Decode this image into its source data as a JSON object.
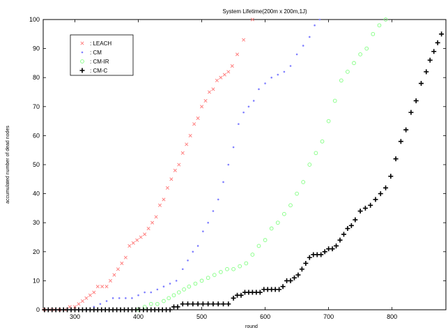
{
  "chart_data": {
    "type": "scatter",
    "title": "System Lifetime(200m x 200m,1J)",
    "xlabel": "round",
    "ylabel": "accumulated number of dead nodes",
    "xlim": [
      250,
      885
    ],
    "ylim": [
      0,
      100
    ],
    "xticks": [
      300,
      400,
      500,
      600,
      700,
      800
    ],
    "yticks": [
      0,
      10,
      20,
      30,
      40,
      50,
      60,
      70,
      80,
      90,
      100
    ],
    "grid": false,
    "legend_position": "top-left",
    "series": [
      {
        "name": ": LEACH",
        "marker": "x",
        "color": "#ff8080",
        "points": [
          [
            252,
            0
          ],
          [
            260,
            0
          ],
          [
            268,
            0
          ],
          [
            276,
            0
          ],
          [
            284,
            0
          ],
          [
            292,
            1
          ],
          [
            300,
            1
          ],
          [
            306,
            2
          ],
          [
            312,
            3
          ],
          [
            318,
            4
          ],
          [
            324,
            5
          ],
          [
            330,
            6
          ],
          [
            336,
            8
          ],
          [
            343,
            8
          ],
          [
            350,
            8
          ],
          [
            356,
            10
          ],
          [
            362,
            12
          ],
          [
            368,
            14
          ],
          [
            374,
            16
          ],
          [
            380,
            18
          ],
          [
            386,
            22
          ],
          [
            392,
            23
          ],
          [
            398,
            24
          ],
          [
            404,
            25
          ],
          [
            410,
            26
          ],
          [
            416,
            28
          ],
          [
            422,
            30
          ],
          [
            428,
            32
          ],
          [
            434,
            36
          ],
          [
            440,
            38
          ],
          [
            446,
            42
          ],
          [
            452,
            45
          ],
          [
            458,
            48
          ],
          [
            464,
            50
          ],
          [
            470,
            54
          ],
          [
            476,
            57
          ],
          [
            482,
            60
          ],
          [
            488,
            64
          ],
          [
            494,
            66
          ],
          [
            500,
            70
          ],
          [
            506,
            72
          ],
          [
            512,
            75
          ],
          [
            518,
            76
          ],
          [
            524,
            79
          ],
          [
            530,
            80
          ],
          [
            536,
            81
          ],
          [
            542,
            82
          ],
          [
            548,
            84
          ],
          [
            556,
            88
          ],
          [
            566,
            93
          ],
          [
            580,
            100
          ]
        ]
      },
      {
        "name": ": CM",
        "marker": "dot",
        "color": "#8080ff",
        "points": [
          [
            258,
            0
          ],
          [
            270,
            0
          ],
          [
            282,
            0
          ],
          [
            294,
            0
          ],
          [
            306,
            0
          ],
          [
            318,
            0
          ],
          [
            330,
            1
          ],
          [
            340,
            2
          ],
          [
            350,
            3
          ],
          [
            360,
            4
          ],
          [
            370,
            4
          ],
          [
            380,
            4
          ],
          [
            390,
            4
          ],
          [
            400,
            5
          ],
          [
            410,
            6
          ],
          [
            420,
            6
          ],
          [
            430,
            7
          ],
          [
            440,
            8
          ],
          [
            450,
            9
          ],
          [
            460,
            10
          ],
          [
            470,
            14
          ],
          [
            478,
            17
          ],
          [
            486,
            20
          ],
          [
            494,
            22
          ],
          [
            502,
            27
          ],
          [
            510,
            30
          ],
          [
            518,
            34
          ],
          [
            526,
            38
          ],
          [
            534,
            44
          ],
          [
            542,
            50
          ],
          [
            550,
            56
          ],
          [
            558,
            64
          ],
          [
            566,
            68
          ],
          [
            574,
            70
          ],
          [
            582,
            72
          ],
          [
            590,
            76
          ],
          [
            600,
            78
          ],
          [
            610,
            80
          ],
          [
            620,
            81
          ],
          [
            630,
            82
          ],
          [
            640,
            84
          ],
          [
            650,
            88
          ],
          [
            660,
            91
          ],
          [
            670,
            94
          ],
          [
            678,
            98
          ],
          [
            686,
            100
          ]
        ]
      },
      {
        "name": ": CM-IR",
        "marker": "circle",
        "color": "#80ff80",
        "points": [
          [
            400,
            0
          ],
          [
            410,
            1
          ],
          [
            420,
            2
          ],
          [
            430,
            2
          ],
          [
            440,
            3
          ],
          [
            448,
            4
          ],
          [
            456,
            5
          ],
          [
            464,
            6
          ],
          [
            472,
            7
          ],
          [
            480,
            8
          ],
          [
            490,
            9
          ],
          [
            500,
            10
          ],
          [
            510,
            11
          ],
          [
            520,
            12
          ],
          [
            530,
            13
          ],
          [
            540,
            14
          ],
          [
            550,
            14
          ],
          [
            560,
            15
          ],
          [
            570,
            16
          ],
          [
            580,
            19
          ],
          [
            590,
            22
          ],
          [
            600,
            24
          ],
          [
            610,
            28
          ],
          [
            620,
            30
          ],
          [
            630,
            33
          ],
          [
            640,
            36
          ],
          [
            650,
            40
          ],
          [
            660,
            44
          ],
          [
            670,
            50
          ],
          [
            680,
            54
          ],
          [
            690,
            58
          ],
          [
            700,
            65
          ],
          [
            710,
            72
          ],
          [
            720,
            79
          ],
          [
            730,
            82
          ],
          [
            740,
            85
          ],
          [
            750,
            88
          ],
          [
            760,
            90
          ],
          [
            770,
            95
          ],
          [
            780,
            98
          ],
          [
            790,
            100
          ]
        ]
      },
      {
        "name": ": CM-C",
        "marker": "plus",
        "color": "#000000",
        "points": [
          [
            252,
            0
          ],
          [
            258,
            0
          ],
          [
            264,
            0
          ],
          [
            270,
            0
          ],
          [
            276,
            0
          ],
          [
            282,
            0
          ],
          [
            288,
            0
          ],
          [
            294,
            0
          ],
          [
            300,
            0
          ],
          [
            306,
            0
          ],
          [
            312,
            0
          ],
          [
            318,
            0
          ],
          [
            324,
            0
          ],
          [
            330,
            0
          ],
          [
            336,
            0
          ],
          [
            342,
            0
          ],
          [
            348,
            0
          ],
          [
            354,
            0
          ],
          [
            360,
            0
          ],
          [
            366,
            0
          ],
          [
            372,
            0
          ],
          [
            378,
            0
          ],
          [
            384,
            0
          ],
          [
            390,
            0
          ],
          [
            396,
            0
          ],
          [
            402,
            0
          ],
          [
            408,
            0
          ],
          [
            414,
            0
          ],
          [
            420,
            0
          ],
          [
            426,
            0
          ],
          [
            432,
            0
          ],
          [
            438,
            0
          ],
          [
            444,
            0
          ],
          [
            450,
            0
          ],
          [
            456,
            1
          ],
          [
            462,
            1
          ],
          [
            470,
            2
          ],
          [
            478,
            2
          ],
          [
            486,
            2
          ],
          [
            494,
            2
          ],
          [
            502,
            2
          ],
          [
            510,
            2
          ],
          [
            518,
            2
          ],
          [
            526,
            2
          ],
          [
            534,
            2
          ],
          [
            542,
            2
          ],
          [
            550,
            4
          ],
          [
            556,
            5
          ],
          [
            562,
            5
          ],
          [
            568,
            6
          ],
          [
            574,
            6
          ],
          [
            580,
            6
          ],
          [
            586,
            6
          ],
          [
            592,
            6
          ],
          [
            598,
            7
          ],
          [
            604,
            7
          ],
          [
            610,
            7
          ],
          [
            616,
            7
          ],
          [
            622,
            7
          ],
          [
            628,
            8
          ],
          [
            634,
            10
          ],
          [
            640,
            10
          ],
          [
            646,
            11
          ],
          [
            652,
            12
          ],
          [
            658,
            14
          ],
          [
            664,
            16
          ],
          [
            670,
            18
          ],
          [
            676,
            19
          ],
          [
            682,
            19
          ],
          [
            688,
            19
          ],
          [
            694,
            20
          ],
          [
            700,
            21
          ],
          [
            706,
            21
          ],
          [
            712,
            22
          ],
          [
            718,
            24
          ],
          [
            724,
            26
          ],
          [
            730,
            28
          ],
          [
            736,
            29
          ],
          [
            742,
            31
          ],
          [
            750,
            34
          ],
          [
            758,
            35
          ],
          [
            766,
            36
          ],
          [
            774,
            38
          ],
          [
            782,
            40
          ],
          [
            790,
            42
          ],
          [
            798,
            46
          ],
          [
            806,
            52
          ],
          [
            814,
            58
          ],
          [
            822,
            62
          ],
          [
            830,
            68
          ],
          [
            838,
            72
          ],
          [
            846,
            78
          ],
          [
            854,
            82
          ],
          [
            860,
            86
          ],
          [
            866,
            89
          ],
          [
            872,
            92
          ],
          [
            878,
            95
          ]
        ]
      }
    ]
  }
}
